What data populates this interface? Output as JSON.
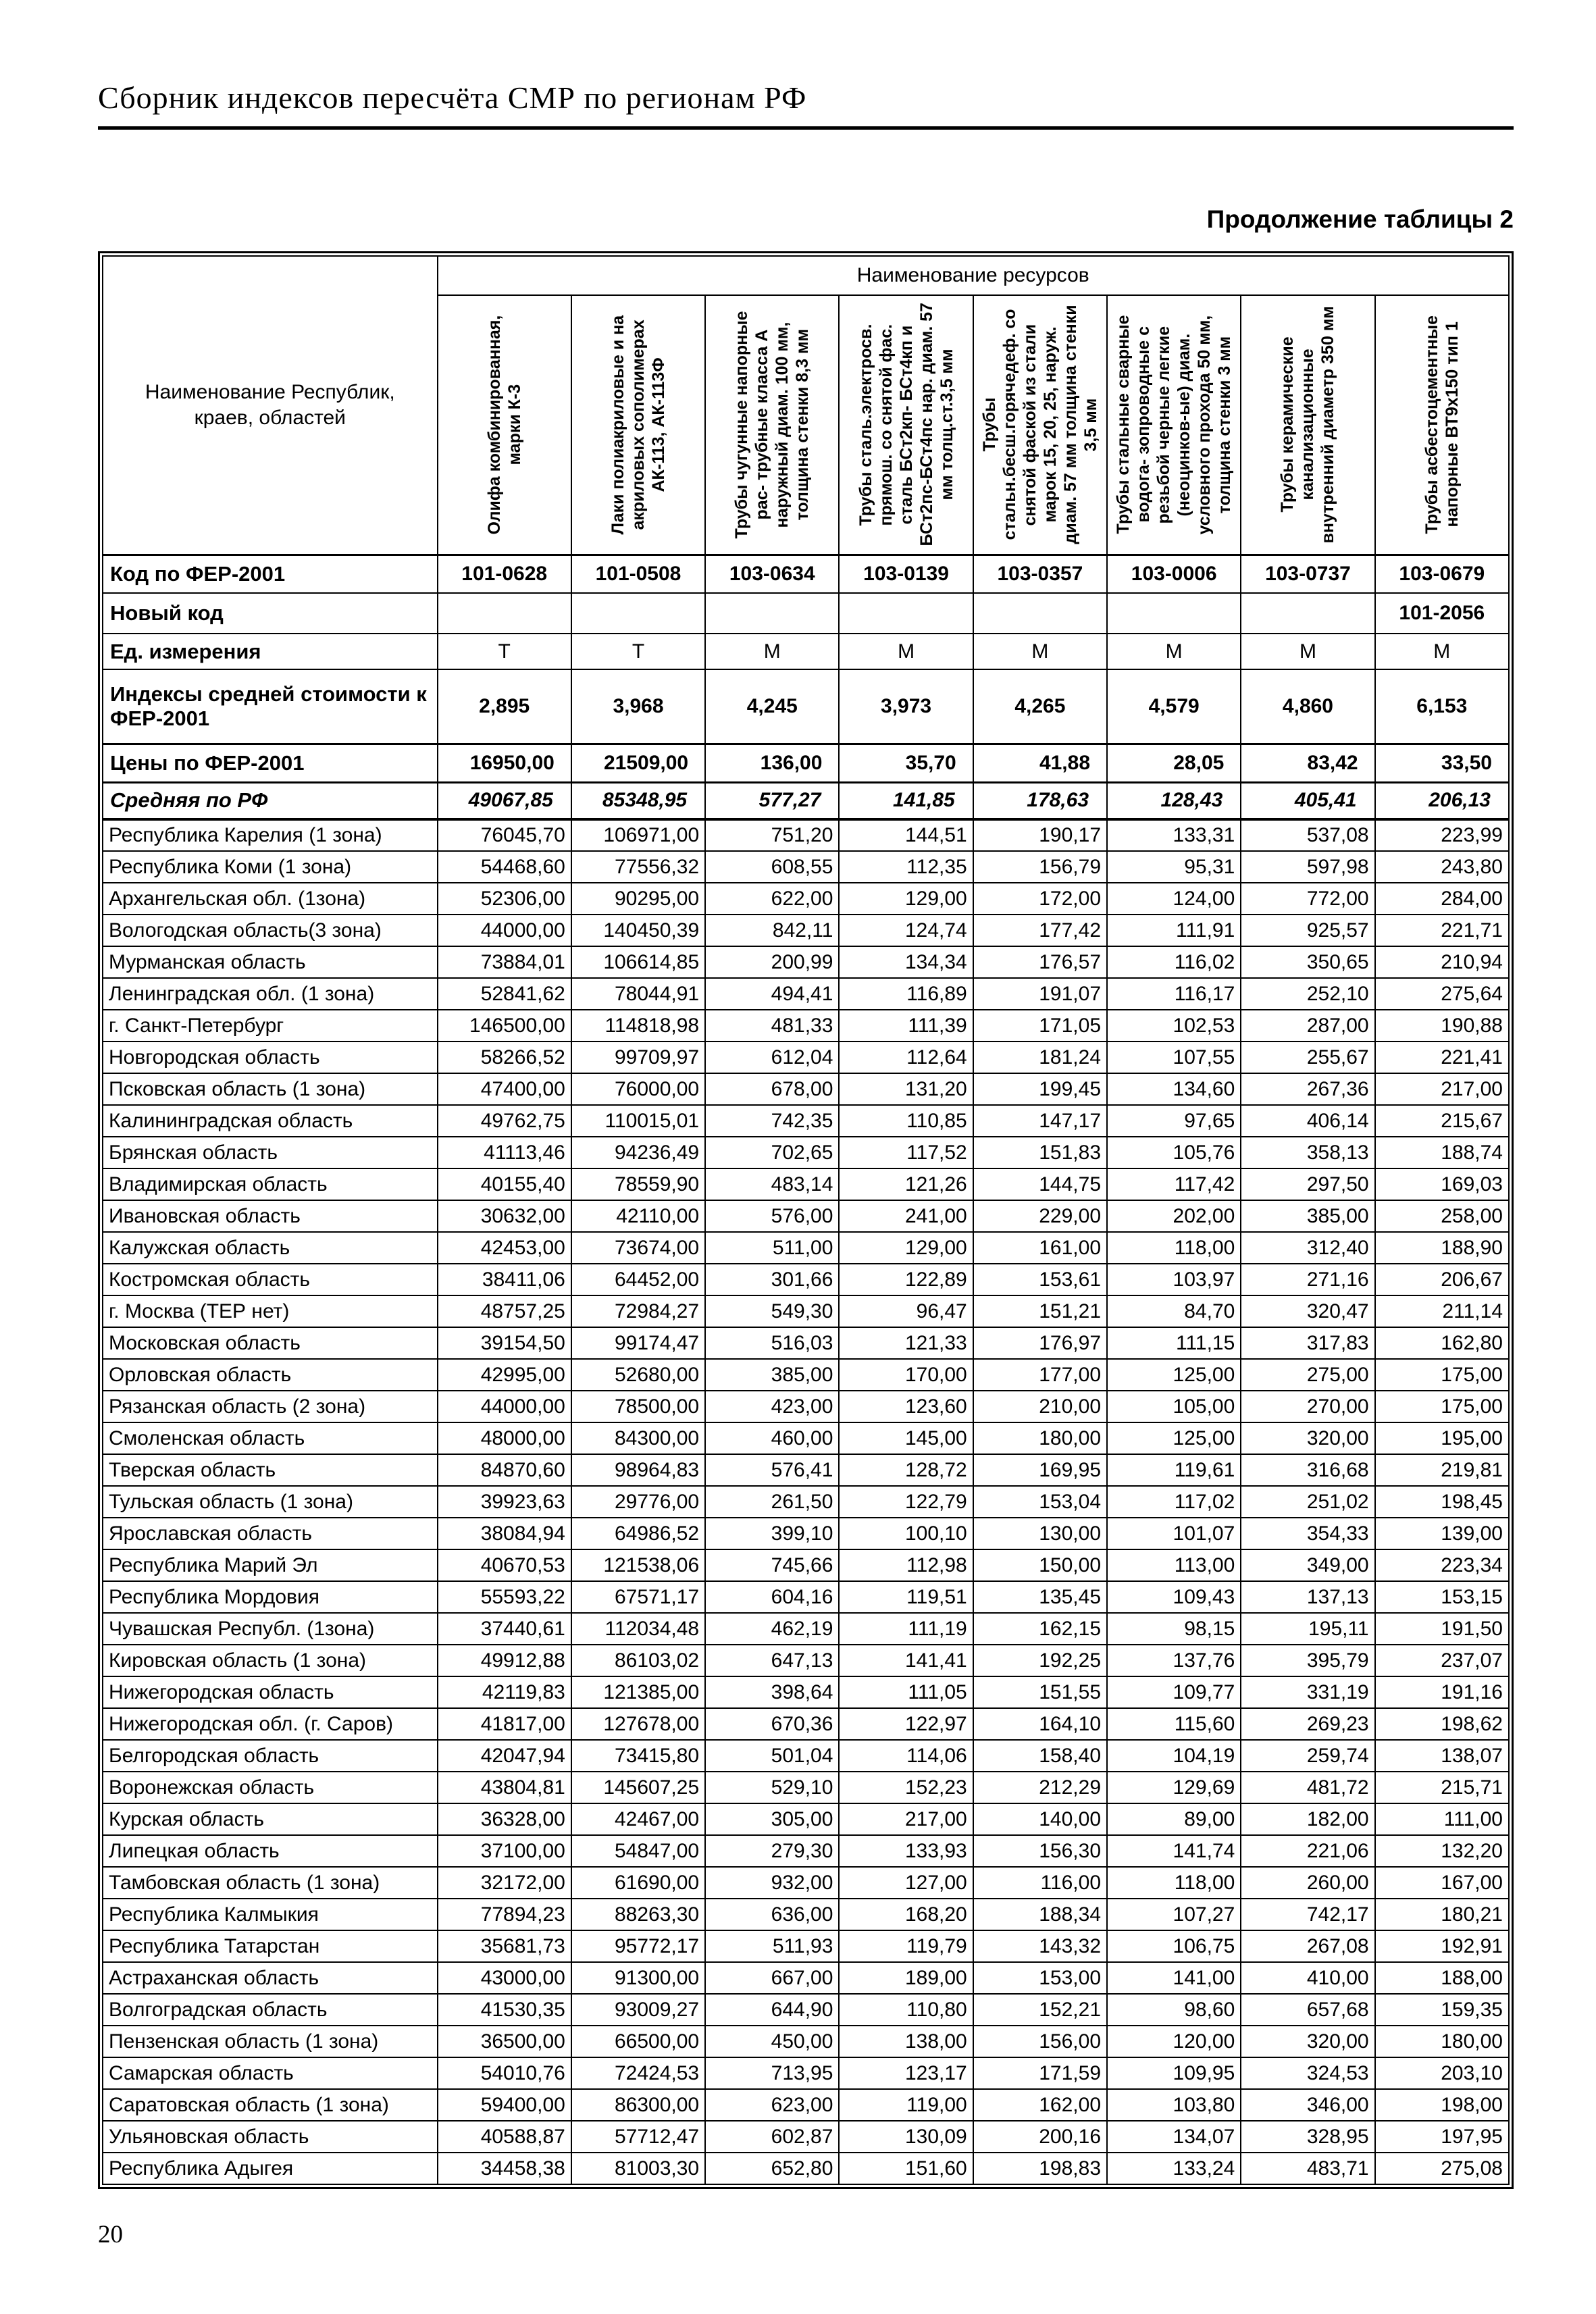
{
  "page": {
    "header_title": "Сборник индексов пересчёта СМР  по регионам РФ",
    "table_caption": "Продолжение таблицы 2",
    "page_number": "20"
  },
  "table": {
    "region_header": "Наименование Республик, краев, областей",
    "resources_header": "Наименование ресурсов",
    "columns": [
      "Олифа комбинированная, марки К-3",
      "Лаки полиакриловые и на акриловых сополимерах АК-113, АК-113Ф",
      "Трубы чугунные напорные рас- трубные класса А наружный диам. 100 мм, толщина стенки 8,3 мм",
      "Трубы сталь.электросв. прямош. со снятой фас. сталь БСт2кп- БСт4кп и БСт2пс-БСт4пс нар. диам. 57 мм  толщ.ст.3,5 мм",
      "Трубы стальн.бесш.горячедеф. со снятой фаской  из стали марок 15, 20, 25, наруж. диам. 57 мм толщина стенки 3,5 мм",
      "Трубы стальные сварные водога- зопроводные с резьбой черные легкие (неоцинков-ые) диам. условного прохода 50 мм, толщина стенки 3 мм",
      "Трубы керамические канализационные внутренний диаметр 350 мм",
      "Трубы асбестоцементные напорные ВТ9х150 тип 1"
    ],
    "meta_rows": [
      {
        "key": "code",
        "label": "Код по ФЕР-2001",
        "values": [
          "101-0628",
          "101-0508",
          "103-0634",
          "103-0139",
          "103-0357",
          "103-0006",
          "103-0737",
          "103-0679"
        ]
      },
      {
        "key": "newcode",
        "label": "Новый код",
        "values": [
          "",
          "",
          "",
          "",
          "",
          "",
          "",
          "101-2056"
        ]
      },
      {
        "key": "unit",
        "label": "Ед. измерения",
        "values": [
          "Т",
          "Т",
          "М",
          "М",
          "М",
          "М",
          "М",
          "М"
        ]
      },
      {
        "key": "index",
        "label": "Индексы средней стоимости к ФЕР-2001",
        "values": [
          "2,895",
          "3,968",
          "4,245",
          "3,973",
          "4,265",
          "4,579",
          "4,860",
          "6,153"
        ]
      },
      {
        "key": "price",
        "label": "Цены по ФЕР-2001",
        "values": [
          "16950,00",
          "21509,00",
          "136,00",
          "35,70",
          "41,88",
          "28,05",
          "83,42",
          "33,50"
        ]
      },
      {
        "key": "average",
        "label": "Средняя по РФ",
        "values": [
          "49067,85",
          "85348,95",
          "577,27",
          "141,85",
          "178,63",
          "128,43",
          "405,41",
          "206,13"
        ]
      }
    ],
    "regions": [
      {
        "name": "Республика Карелия (1 зона)",
        "values": [
          "76045,70",
          "106971,00",
          "751,20",
          "144,51",
          "190,17",
          "133,31",
          "537,08",
          "223,99"
        ]
      },
      {
        "name": "Республика Коми (1 зона)",
        "values": [
          "54468,60",
          "77556,32",
          "608,55",
          "112,35",
          "156,79",
          "95,31",
          "597,98",
          "243,80"
        ]
      },
      {
        "name": "Архангельская обл. (1зона)",
        "values": [
          "52306,00",
          "90295,00",
          "622,00",
          "129,00",
          "172,00",
          "124,00",
          "772,00",
          "284,00"
        ]
      },
      {
        "name": "Вологодская область(3 зона)",
        "values": [
          "44000,00",
          "140450,39",
          "842,11",
          "124,74",
          "177,42",
          "111,91",
          "925,57",
          "221,71"
        ]
      },
      {
        "name": "Мурманская область",
        "values": [
          "73884,01",
          "106614,85",
          "200,99",
          "134,34",
          "176,57",
          "116,02",
          "350,65",
          "210,94"
        ]
      },
      {
        "name": "Ленинградская обл. (1 зона)",
        "values": [
          "52841,62",
          "78044,91",
          "494,41",
          "116,89",
          "191,07",
          "116,17",
          "252,10",
          "275,64"
        ]
      },
      {
        "name": "г. Санкт-Петербург",
        "values": [
          "146500,00",
          "114818,98",
          "481,33",
          "111,39",
          "171,05",
          "102,53",
          "287,00",
          "190,88"
        ]
      },
      {
        "name": "Новгородская область",
        "values": [
          "58266,52",
          "99709,97",
          "612,04",
          "112,64",
          "181,24",
          "107,55",
          "255,67",
          "221,41"
        ]
      },
      {
        "name": "Псковская область (1 зона)",
        "values": [
          "47400,00",
          "76000,00",
          "678,00",
          "131,20",
          "199,45",
          "134,60",
          "267,36",
          "217,00"
        ]
      },
      {
        "name": "Калининградская область",
        "values": [
          "49762,75",
          "110015,01",
          "742,35",
          "110,85",
          "147,17",
          "97,65",
          "406,14",
          "215,67"
        ]
      },
      {
        "name": "Брянская область",
        "values": [
          "41113,46",
          "94236,49",
          "702,65",
          "117,52",
          "151,83",
          "105,76",
          "358,13",
          "188,74"
        ]
      },
      {
        "name": "Владимирская область",
        "values": [
          "40155,40",
          "78559,90",
          "483,14",
          "121,26",
          "144,75",
          "117,42",
          "297,50",
          "169,03"
        ]
      },
      {
        "name": "Ивановская область",
        "values": [
          "30632,00",
          "42110,00",
          "576,00",
          "241,00",
          "229,00",
          "202,00",
          "385,00",
          "258,00"
        ]
      },
      {
        "name": "Калужская область",
        "values": [
          "42453,00",
          "73674,00",
          "511,00",
          "129,00",
          "161,00",
          "118,00",
          "312,40",
          "188,90"
        ]
      },
      {
        "name": "Костромская область",
        "values": [
          "38411,06",
          "64452,00",
          "301,66",
          "122,89",
          "153,61",
          "103,97",
          "271,16",
          "206,67"
        ]
      },
      {
        "name": "г. Москва (ТЕР нет)",
        "values": [
          "48757,25",
          "72984,27",
          "549,30",
          "96,47",
          "151,21",
          "84,70",
          "320,47",
          "211,14"
        ]
      },
      {
        "name": "Московская  область",
        "values": [
          "39154,50",
          "99174,47",
          "516,03",
          "121,33",
          "176,97",
          "111,15",
          "317,83",
          "162,80"
        ]
      },
      {
        "name": "Орловская область",
        "values": [
          "42995,00",
          "52680,00",
          "385,00",
          "170,00",
          "177,00",
          "125,00",
          "275,00",
          "175,00"
        ]
      },
      {
        "name": "Рязанская область (2 зона)",
        "values": [
          "44000,00",
          "78500,00",
          "423,00",
          "123,60",
          "210,00",
          "105,00",
          "270,00",
          "175,00"
        ]
      },
      {
        "name": "Смоленская область",
        "values": [
          "48000,00",
          "84300,00",
          "460,00",
          "145,00",
          "180,00",
          "125,00",
          "320,00",
          "195,00"
        ]
      },
      {
        "name": "Тверская область",
        "values": [
          "84870,60",
          "98964,83",
          "576,41",
          "128,72",
          "169,95",
          "119,61",
          "316,68",
          "219,81"
        ]
      },
      {
        "name": "Тульская область (1 зона)",
        "values": [
          "39923,63",
          "29776,00",
          "261,50",
          "122,79",
          "153,04",
          "117,02",
          "251,02",
          "198,45"
        ]
      },
      {
        "name": "Ярославская область",
        "values": [
          "38084,94",
          "64986,52",
          "399,10",
          "100,10",
          "130,00",
          "101,07",
          "354,33",
          "139,00"
        ]
      },
      {
        "name": "Республика Марий Эл",
        "values": [
          "40670,53",
          "121538,06",
          "745,66",
          "112,98",
          "150,00",
          "113,00",
          "349,00",
          "223,34"
        ]
      },
      {
        "name": "Республика Мордовия",
        "values": [
          "55593,22",
          "67571,17",
          "604,16",
          "119,51",
          "135,45",
          "109,43",
          "137,13",
          "153,15"
        ]
      },
      {
        "name": "Чувашская Республ. (1зона)",
        "values": [
          "37440,61",
          "112034,48",
          "462,19",
          "111,19",
          "162,15",
          "98,15",
          "195,11",
          "191,50"
        ]
      },
      {
        "name": "Кировская область (1 зона)",
        "values": [
          "49912,88",
          "86103,02",
          "647,13",
          "141,41",
          "192,25",
          "137,76",
          "395,79",
          "237,07"
        ]
      },
      {
        "name": "Нижегородская область",
        "values": [
          "42119,83",
          "121385,00",
          "398,64",
          "111,05",
          "151,55",
          "109,77",
          "331,19",
          "191,16"
        ]
      },
      {
        "name": "Нижегородская обл. (г. Саров)",
        "values": [
          "41817,00",
          "127678,00",
          "670,36",
          "122,97",
          "164,10",
          "115,60",
          "269,23",
          "198,62"
        ]
      },
      {
        "name": "Белгородская область",
        "values": [
          "42047,94",
          "73415,80",
          "501,04",
          "114,06",
          "158,40",
          "104,19",
          "259,74",
          "138,07"
        ]
      },
      {
        "name": "Воронежская область",
        "values": [
          "43804,81",
          "145607,25",
          "529,10",
          "152,23",
          "212,29",
          "129,69",
          "481,72",
          "215,71"
        ]
      },
      {
        "name": "Курская область",
        "values": [
          "36328,00",
          "42467,00",
          "305,00",
          "217,00",
          "140,00",
          "89,00",
          "182,00",
          "111,00"
        ]
      },
      {
        "name": "Липецкая область",
        "values": [
          "37100,00",
          "54847,00",
          "279,30",
          "133,93",
          "156,30",
          "141,74",
          "221,06",
          "132,20"
        ]
      },
      {
        "name": "Тамбовская область (1 зона)",
        "values": [
          "32172,00",
          "61690,00",
          "932,00",
          "127,00",
          "116,00",
          "118,00",
          "260,00",
          "167,00"
        ]
      },
      {
        "name": "Республика Калмыкия",
        "values": [
          "77894,23",
          "88263,30",
          "636,00",
          "168,20",
          "188,34",
          "107,27",
          "742,17",
          "180,21"
        ]
      },
      {
        "name": "Республика Татарстан",
        "values": [
          "35681,73",
          "95772,17",
          "511,93",
          "119,79",
          "143,32",
          "106,75",
          "267,08",
          "192,91"
        ]
      },
      {
        "name": "Астраханская область",
        "values": [
          "43000,00",
          "91300,00",
          "667,00",
          "189,00",
          "153,00",
          "141,00",
          "410,00",
          "188,00"
        ]
      },
      {
        "name": "Волгоградская область",
        "values": [
          "41530,35",
          "93009,27",
          "644,90",
          "110,80",
          "152,21",
          "98,60",
          "657,68",
          "159,35"
        ]
      },
      {
        "name": "Пензенская область (1 зона)",
        "values": [
          "36500,00",
          "66500,00",
          "450,00",
          "138,00",
          "156,00",
          "120,00",
          "320,00",
          "180,00"
        ]
      },
      {
        "name": "Самарская область",
        "values": [
          "54010,76",
          "72424,53",
          "713,95",
          "123,17",
          "171,59",
          "109,95",
          "324,53",
          "203,10"
        ]
      },
      {
        "name": "Саратовская область (1 зона)",
        "values": [
          "59400,00",
          "86300,00",
          "623,00",
          "119,00",
          "162,00",
          "103,80",
          "346,00",
          "198,00"
        ]
      },
      {
        "name": "Ульяновская область",
        "values": [
          "40588,87",
          "57712,47",
          "602,87",
          "130,09",
          "200,16",
          "134,07",
          "328,95",
          "197,95"
        ]
      },
      {
        "name": "Республика Адыгея",
        "values": [
          "34458,38",
          "81003,30",
          "652,80",
          "151,60",
          "198,83",
          "133,24",
          "483,71",
          "275,08"
        ]
      }
    ]
  }
}
